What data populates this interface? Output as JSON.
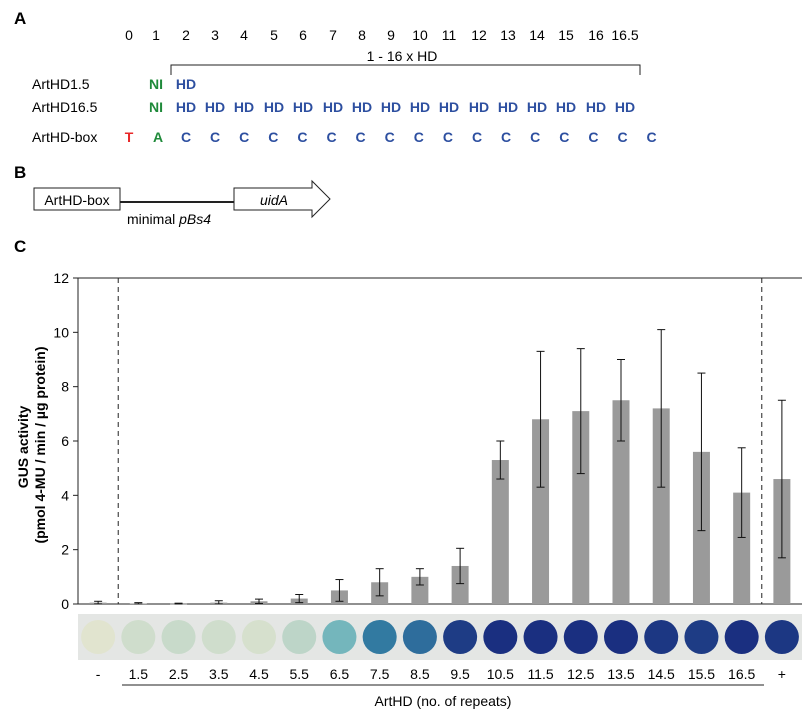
{
  "colors": {
    "t_base": "#e8292a",
    "ni_green": "#1f8a3a",
    "hd_blue": "#2d4fa0",
    "bar_gray": "#9a9a9a",
    "text": "#222222"
  },
  "panel_a": {
    "label": "A",
    "positions": [
      "0",
      "1",
      "2",
      "3",
      "4",
      "5",
      "6",
      "7",
      "8",
      "9",
      "10",
      "11",
      "12",
      "13",
      "14",
      "15",
      "16",
      "16.5"
    ],
    "bracket_label": "1 - 16 x HD",
    "rows": [
      {
        "name": "ArtHD1.5",
        "first": "NI",
        "repeats": [
          "HD"
        ]
      },
      {
        "name": "ArtHD16.5",
        "first": "NI",
        "repeats": [
          "HD",
          "HD",
          "HD",
          "HD",
          "HD",
          "HD",
          "HD",
          "HD",
          "HD",
          "HD",
          "HD",
          "HD",
          "HD",
          "HD",
          "HD",
          "HD"
        ]
      }
    ],
    "box_row": {
      "name": "ArtHD-box",
      "bases": [
        "T",
        "A",
        "C",
        "C",
        "C",
        "C",
        "C",
        "C",
        "C",
        "C",
        "C",
        "C",
        "C",
        "C",
        "C",
        "C",
        "C",
        "C",
        "C"
      ]
    }
  },
  "panel_b": {
    "label": "B",
    "box_label": "ArtHD-box",
    "promoter_prefix": "minimal ",
    "promoter_name": "pBs4",
    "gene": "uidA"
  },
  "panel_c": {
    "label": "C"
  },
  "chart_data": {
    "type": "bar",
    "ylabel_line1": "GUS activity",
    "ylabel_line2": "(pmol 4-MU / min / µg protein)",
    "xlabel": "ArtHD (no. of repeats)",
    "categories": [
      "-",
      "1.5",
      "2.5",
      "3.5",
      "4.5",
      "5.5",
      "6.5",
      "7.5",
      "8.5",
      "9.5",
      "10.5",
      "11.5",
      "12.5",
      "13.5",
      "14.5",
      "15.5",
      "16.5",
      "+"
    ],
    "values": [
      0.05,
      0.02,
      0.01,
      0.05,
      0.1,
      0.2,
      0.5,
      0.8,
      1.0,
      1.4,
      5.3,
      6.8,
      7.1,
      7.5,
      7.2,
      5.6,
      4.1,
      4.6
    ],
    "errors": [
      0.05,
      0.03,
      0.02,
      0.07,
      0.08,
      0.15,
      0.4,
      0.5,
      0.3,
      0.65,
      0.7,
      2.5,
      2.3,
      1.5,
      2.9,
      2.9,
      1.65,
      2.9
    ],
    "ylim": [
      0,
      12
    ],
    "yticks": [
      0,
      2,
      4,
      6,
      8,
      10,
      12
    ],
    "stain_levels": [
      0.05,
      0.1,
      0.12,
      0.1,
      0.08,
      0.15,
      0.35,
      0.65,
      0.7,
      0.9,
      0.95,
      0.95,
      0.95,
      0.95,
      0.92,
      0.9,
      0.95,
      0.92
    ]
  }
}
